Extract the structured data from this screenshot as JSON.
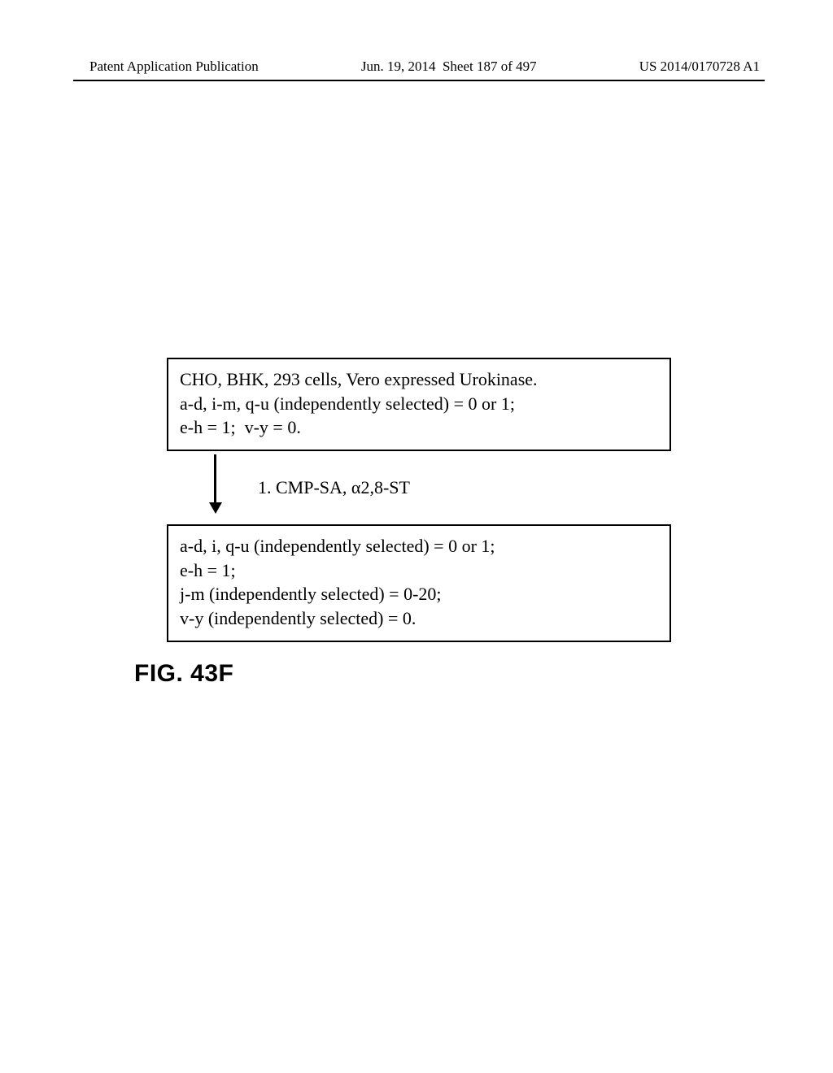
{
  "header": {
    "left": "Patent Application Publication",
    "mid_date": "Jun. 19, 2014",
    "mid_sheet": "Sheet 187 of 497",
    "right": "US 2014/0170728 A1"
  },
  "box1": {
    "line1": "CHO, BHK, 293 cells, Vero expressed Urokinase.",
    "line2": "a-d, i-m, q-u (independently selected) = 0 or 1;",
    "line3": "e-h = 1;  v-y = 0."
  },
  "arrow": {
    "label_prefix": "1. CMP-SA, ",
    "label_alpha": "α",
    "label_suffix": "2,8-ST"
  },
  "box2": {
    "line1": "a-d, i, q-u (independently selected) = 0 or 1;",
    "line2": "e-h = 1;",
    "line3": "j-m (independently selected) = 0-20;",
    "line4": "v-y (independently selected) = 0."
  },
  "figure_label": "FIG. 43F"
}
